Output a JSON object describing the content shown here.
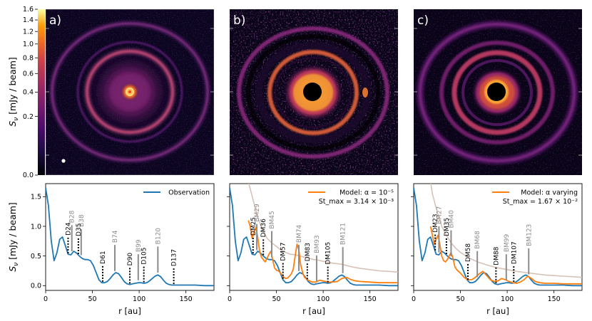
{
  "colorbar": {
    "ylabel": "S_ν [mJy / beam]",
    "ylabel_main": "S",
    "ylabel_sub": "ν",
    "ylabel_rest": " [mJy / beam]",
    "ticks": [
      "1.6",
      "1.4",
      "1.2",
      "1.0",
      "0.8",
      "0.6",
      "0.4",
      "0.2",
      "0.0"
    ],
    "tick_values": [
      1.6,
      1.4,
      1.2,
      1.0,
      0.8,
      0.6,
      0.4,
      0.2,
      0.0
    ],
    "scale": "sqrt",
    "max": 1.6
  },
  "images": [
    {
      "letter": "a)",
      "type": "observation",
      "has_beam": true
    },
    {
      "letter": "b)",
      "type": "residual"
    },
    {
      "letter": "c)",
      "type": "model"
    }
  ],
  "colors": {
    "observation": "#1f77b4",
    "model": "#ff7f0e",
    "ghost": "#d7c2b8",
    "annot_gray": "#8c8c8c",
    "annot_black": "#000000"
  },
  "chart_data": [
    {
      "type": "line",
      "panel": "a",
      "xlabel": "r [au]",
      "ylabel": "S_ν [mJy / beam]",
      "xlim": [
        0,
        180
      ],
      "ylim": [
        -0.08,
        1.72
      ],
      "xticks": [
        "0",
        "50",
        "100",
        "150"
      ],
      "yticks": [
        "0.0",
        "0.5",
        "1.0",
        "1.5"
      ],
      "legend": {
        "position": "top-right",
        "lines": [
          "Observation"
        ]
      },
      "series": [
        {
          "name": "Observation",
          "x": [
            0,
            3,
            6,
            9,
            12,
            15,
            18,
            21,
            24,
            27,
            30,
            33,
            36,
            39,
            42,
            45,
            48,
            51,
            54,
            57,
            60,
            63,
            66,
            69,
            72,
            75,
            78,
            81,
            84,
            87,
            90,
            93,
            96,
            99,
            102,
            105,
            108,
            111,
            114,
            117,
            120,
            123,
            126,
            129,
            132,
            135,
            138,
            141,
            144,
            147,
            150,
            160,
            170,
            180
          ],
          "y": [
            1.65,
            1.35,
            0.75,
            0.42,
            0.55,
            0.78,
            0.82,
            0.68,
            0.53,
            0.52,
            0.58,
            0.55,
            0.5,
            0.46,
            0.44,
            0.44,
            0.42,
            0.34,
            0.22,
            0.1,
            0.05,
            0.05,
            0.07,
            0.12,
            0.18,
            0.22,
            0.2,
            0.14,
            0.07,
            0.03,
            0.02,
            0.03,
            0.04,
            0.05,
            0.05,
            0.04,
            0.05,
            0.08,
            0.12,
            0.16,
            0.18,
            0.15,
            0.09,
            0.04,
            0.02,
            0.01,
            0.01,
            0.01,
            0.01,
            0.01,
            0.01,
            0.01,
            0.0,
            0.0
          ]
        }
      ],
      "annotations": [
        {
          "label": "D24",
          "r": 24,
          "kind": "gap"
        },
        {
          "label": "D35",
          "r": 35,
          "kind": "gap"
        },
        {
          "label": "D61",
          "r": 61,
          "kind": "gap"
        },
        {
          "label": "D90",
          "r": 90,
          "kind": "gap"
        },
        {
          "label": "D105",
          "r": 105,
          "kind": "gap"
        },
        {
          "label": "D137",
          "r": 137,
          "kind": "gap"
        },
        {
          "label": "B28",
          "r": 28,
          "kind": "ring"
        },
        {
          "label": "B38",
          "r": 38,
          "kind": "ring"
        },
        {
          "label": "B74",
          "r": 74,
          "kind": "ring"
        },
        {
          "label": "B99",
          "r": 99,
          "kind": "ring"
        },
        {
          "label": "B120",
          "r": 120,
          "kind": "ring"
        }
      ]
    },
    {
      "type": "line",
      "panel": "b",
      "xlabel": "r [au]",
      "xlim": [
        0,
        180
      ],
      "ylim": [
        -0.08,
        1.72
      ],
      "xticks": [
        "0",
        "50",
        "100",
        "150"
      ],
      "legend": {
        "position": "top-right",
        "lines": [
          "Model: α = 10⁻⁵",
          "St_max = 3.14 × 10⁻³"
        ]
      },
      "series": [
        {
          "name": "Observation",
          "x": [
            0,
            3,
            6,
            9,
            12,
            15,
            18,
            21,
            24,
            27,
            30,
            33,
            36,
            39,
            42,
            45,
            48,
            51,
            54,
            57,
            60,
            63,
            66,
            69,
            72,
            75,
            78,
            81,
            84,
            87,
            90,
            93,
            96,
            99,
            102,
            105,
            108,
            111,
            114,
            117,
            120,
            123,
            126,
            129,
            132,
            135,
            138,
            141,
            144,
            147,
            150,
            160,
            170,
            180
          ],
          "y": [
            1.65,
            1.35,
            0.75,
            0.42,
            0.55,
            0.78,
            0.82,
            0.68,
            0.53,
            0.52,
            0.58,
            0.55,
            0.5,
            0.46,
            0.44,
            0.44,
            0.42,
            0.34,
            0.22,
            0.1,
            0.05,
            0.05,
            0.07,
            0.12,
            0.18,
            0.22,
            0.2,
            0.14,
            0.07,
            0.03,
            0.02,
            0.03,
            0.04,
            0.05,
            0.05,
            0.04,
            0.05,
            0.08,
            0.12,
            0.16,
            0.18,
            0.15,
            0.09,
            0.04,
            0.02,
            0.01,
            0.01,
            0.01,
            0.01,
            0.01,
            0.01,
            0.01,
            0.0,
            0.0
          ]
        },
        {
          "name": "Model",
          "x": [
            20,
            22,
            24,
            26,
            28,
            30,
            32,
            34,
            36,
            38,
            40,
            42,
            44,
            46,
            48,
            50,
            52,
            54,
            56,
            58,
            60,
            62,
            64,
            66,
            68,
            70,
            72,
            74,
            76,
            78,
            80,
            84,
            88,
            92,
            96,
            100,
            105,
            110,
            115,
            120,
            125,
            130,
            135,
            140,
            150,
            160,
            170,
            180
          ],
          "y": [
            1.1,
            1.0,
            0.8,
            0.9,
            0.98,
            0.82,
            0.58,
            0.48,
            0.44,
            0.4,
            0.46,
            0.53,
            0.58,
            0.44,
            0.3,
            0.26,
            0.25,
            0.22,
            0.18,
            0.14,
            0.12,
            0.13,
            0.16,
            0.2,
            0.28,
            0.5,
            0.7,
            0.6,
            0.35,
            0.22,
            0.14,
            0.09,
            0.06,
            0.06,
            0.09,
            0.08,
            0.06,
            0.06,
            0.07,
            0.12,
            0.14,
            0.1,
            0.08,
            0.07,
            0.06,
            0.05,
            0.05,
            0.05
          ]
        },
        {
          "name": "Model (unconvolved)",
          "x": [
            20,
            25,
            30,
            35,
            40,
            45,
            50,
            55,
            60,
            65,
            70,
            75,
            80,
            85,
            90,
            95,
            100,
            110,
            120,
            130,
            140,
            150,
            160,
            170,
            180
          ],
          "y": [
            1.75,
            1.45,
            1.15,
            0.95,
            0.8,
            0.72,
            0.66,
            0.6,
            0.56,
            0.53,
            0.52,
            0.5,
            0.48,
            0.46,
            0.44,
            0.43,
            0.41,
            0.38,
            0.36,
            0.32,
            0.29,
            0.27,
            0.25,
            0.24,
            0.23
          ]
        }
      ],
      "annotations": [
        {
          "label": "DM25",
          "r": 25,
          "kind": "gap"
        },
        {
          "label": "DM36",
          "r": 36,
          "kind": "gap"
        },
        {
          "label": "DM57",
          "r": 57,
          "kind": "gap"
        },
        {
          "label": "DM83",
          "r": 83,
          "kind": "gap"
        },
        {
          "label": "DM105",
          "r": 105,
          "kind": "gap"
        },
        {
          "label": "BM29",
          "r": 29,
          "kind": "ring"
        },
        {
          "label": "BM45",
          "r": 45,
          "kind": "ring"
        },
        {
          "label": "BM74",
          "r": 74,
          "kind": "ring"
        },
        {
          "label": "BM93",
          "r": 93,
          "kind": "ring"
        },
        {
          "label": "BM121",
          "r": 121,
          "kind": "ring"
        }
      ]
    },
    {
      "type": "line",
      "panel": "c",
      "xlabel": "r [au]",
      "xlim": [
        0,
        180
      ],
      "ylim": [
        -0.08,
        1.72
      ],
      "xticks": [
        "0",
        "50",
        "100",
        "150"
      ],
      "legend": {
        "position": "top-right",
        "lines": [
          "Model: α varying",
          "St_max = 1.67 × 10⁻²"
        ]
      },
      "series": [
        {
          "name": "Observation",
          "x": [
            0,
            3,
            6,
            9,
            12,
            15,
            18,
            21,
            24,
            27,
            30,
            33,
            36,
            39,
            42,
            45,
            48,
            51,
            54,
            57,
            60,
            63,
            66,
            69,
            72,
            75,
            78,
            81,
            84,
            87,
            90,
            93,
            96,
            99,
            102,
            105,
            108,
            111,
            114,
            117,
            120,
            123,
            126,
            129,
            132,
            135,
            138,
            141,
            144,
            147,
            150,
            160,
            170,
            180
          ],
          "y": [
            1.65,
            1.35,
            0.75,
            0.42,
            0.55,
            0.78,
            0.82,
            0.68,
            0.53,
            0.52,
            0.58,
            0.55,
            0.5,
            0.46,
            0.44,
            0.44,
            0.42,
            0.34,
            0.22,
            0.1,
            0.05,
            0.05,
            0.07,
            0.12,
            0.18,
            0.22,
            0.2,
            0.14,
            0.07,
            0.03,
            0.02,
            0.03,
            0.04,
            0.05,
            0.05,
            0.04,
            0.05,
            0.08,
            0.12,
            0.16,
            0.18,
            0.15,
            0.09,
            0.04,
            0.02,
            0.01,
            0.01,
            0.01,
            0.01,
            0.01,
            0.01,
            0.01,
            0.0,
            0.0
          ]
        },
        {
          "name": "Model",
          "x": [
            18,
            20,
            22,
            24,
            26,
            28,
            30,
            32,
            34,
            36,
            38,
            40,
            42,
            44,
            46,
            48,
            50,
            54,
            58,
            62,
            66,
            70,
            74,
            78,
            82,
            86,
            90,
            94,
            98,
            102,
            106,
            110,
            114,
            118,
            122,
            126,
            130,
            135,
            140,
            150,
            160,
            170,
            180
          ],
          "y": [
            1.0,
            0.85,
            0.7,
            0.78,
            0.85,
            0.7,
            0.5,
            0.42,
            0.4,
            0.44,
            0.5,
            0.56,
            0.46,
            0.32,
            0.27,
            0.24,
            0.21,
            0.14,
            0.1,
            0.1,
            0.14,
            0.2,
            0.24,
            0.17,
            0.1,
            0.07,
            0.08,
            0.12,
            0.1,
            0.07,
            0.05,
            0.04,
            0.06,
            0.1,
            0.16,
            0.12,
            0.07,
            0.05,
            0.04,
            0.04,
            0.03,
            0.03,
            0.03
          ]
        },
        {
          "name": "Model (unconvolved)",
          "x": [
            18,
            20,
            25,
            30,
            35,
            40,
            45,
            50,
            60,
            70,
            80,
            90,
            100,
            110,
            120,
            130,
            140,
            150,
            160,
            170,
            180
          ],
          "y": [
            1.75,
            1.55,
            1.25,
            1.0,
            0.85,
            0.72,
            0.63,
            0.56,
            0.46,
            0.39,
            0.34,
            0.3,
            0.27,
            0.24,
            0.22,
            0.2,
            0.18,
            0.17,
            0.16,
            0.15,
            0.14
          ]
        }
      ],
      "annotations": [
        {
          "label": "DM23",
          "r": 23,
          "kind": "gap"
        },
        {
          "label": "DM35",
          "r": 35,
          "kind": "gap"
        },
        {
          "label": "DM58",
          "r": 58,
          "kind": "gap"
        },
        {
          "label": "DM88",
          "r": 88,
          "kind": "gap"
        },
        {
          "label": "DM107",
          "r": 107,
          "kind": "gap"
        },
        {
          "label": "BM27",
          "r": 27,
          "kind": "ring"
        },
        {
          "label": "BM40",
          "r": 40,
          "kind": "ring"
        },
        {
          "label": "BM68",
          "r": 68,
          "kind": "ring"
        },
        {
          "label": "BM99",
          "r": 99,
          "kind": "ring"
        },
        {
          "label": "BM123",
          "r": 123,
          "kind": "ring"
        }
      ]
    }
  ]
}
